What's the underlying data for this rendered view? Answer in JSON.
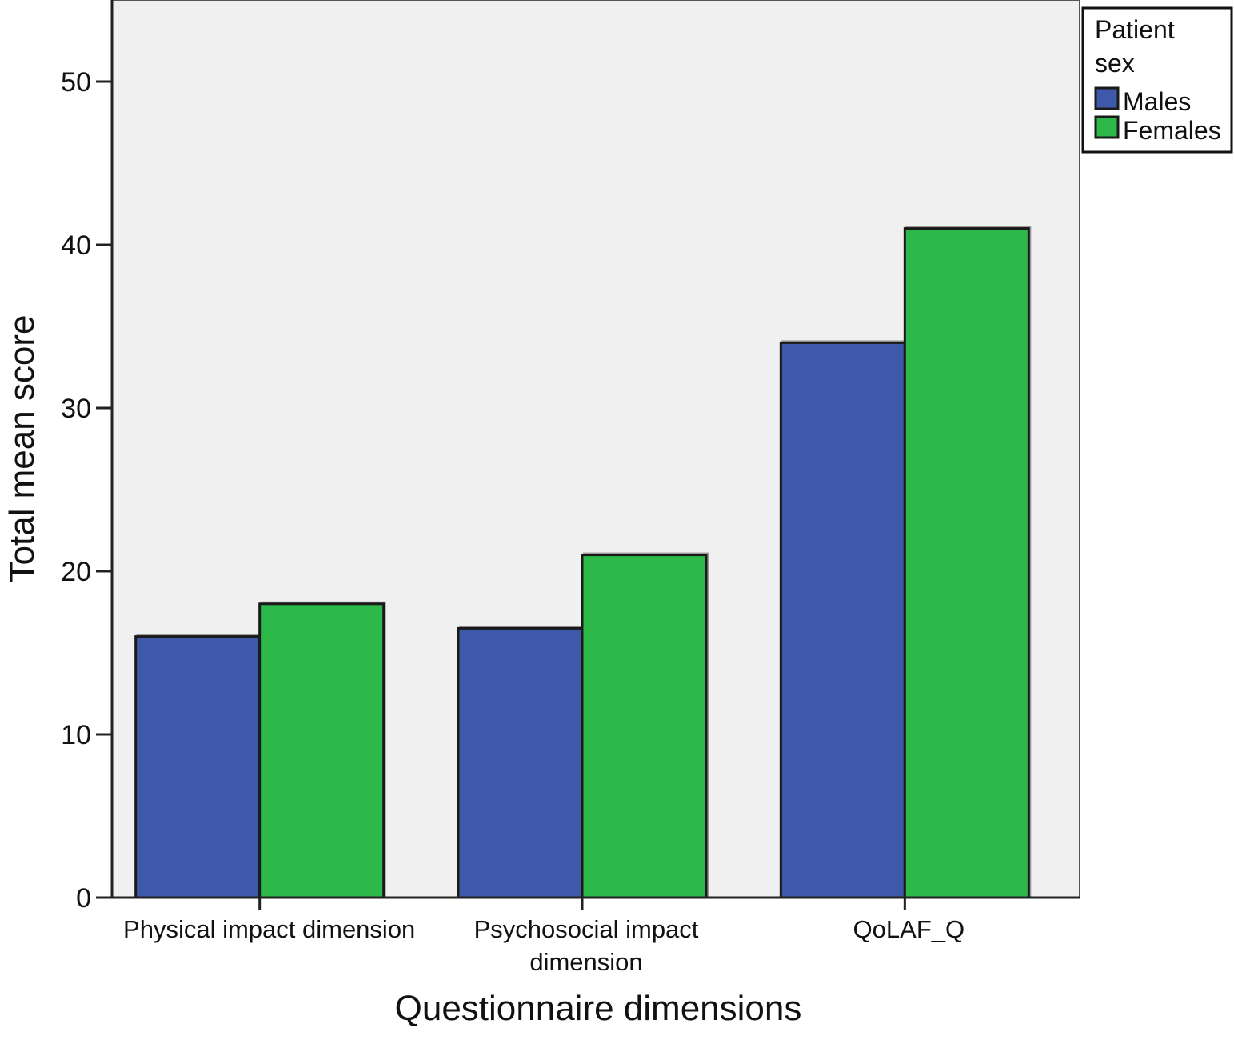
{
  "chart_data": {
    "type": "bar",
    "title": "",
    "xlabel": "Questionnaire dimensions",
    "ylabel": "Total mean score",
    "categories": [
      [
        "Physical impact dimension"
      ],
      [
        "Psychosocial impact",
        "dimension"
      ],
      [
        "QoLAF_Q"
      ]
    ],
    "series": [
      {
        "name": "Males",
        "color": "#3f59aa",
        "values": [
          16,
          16.5,
          34
        ]
      },
      {
        "name": "Females",
        "color": "#2db84a",
        "values": [
          18,
          21,
          41
        ]
      }
    ],
    "ylim": [
      0,
      55
    ],
    "yticks": [
      0,
      10,
      20,
      30,
      40,
      50
    ],
    "grid": false,
    "legend": {
      "title": [
        "Patient",
        "sex"
      ],
      "placement": "top-right outside"
    },
    "plot_background": "#f0f0f0"
  }
}
